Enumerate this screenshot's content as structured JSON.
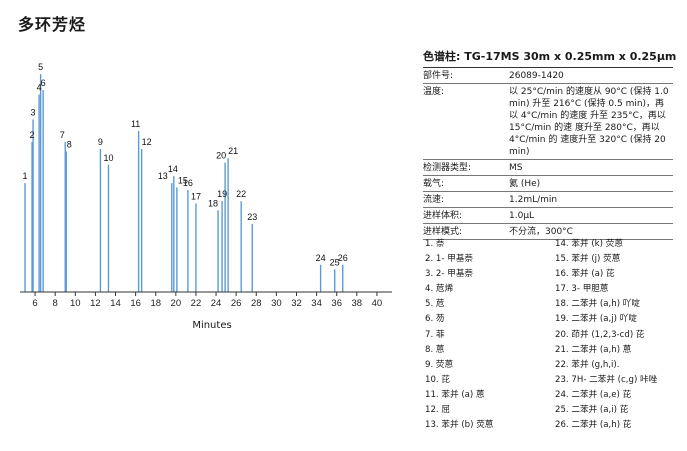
{
  "page_title": "多环芳烃",
  "column": {
    "label": "色谱柱:",
    "value": "TG-17MS 30m x 0.25mm x 0.25μm"
  },
  "params": [
    {
      "key": "部件号:",
      "value": "26089-1420"
    },
    {
      "key": "温度:",
      "value": "以 25°C/min 的速度从 90°C (保持 1.0 min) 升至 216°C (保持 0.5 min)，再以 4°C/min 的速度 升至 235°C，再以 15°C/min 的速 度升至 280°C，再以 4°C/min 的 速度升至 320°C (保持 20 min)"
    },
    {
      "key": "检测器类型:",
      "value": "MS"
    },
    {
      "key": "载气:",
      "value": "氦 (He)"
    },
    {
      "key": "流速:",
      "value": "1.2mL/min"
    },
    {
      "key": "进样体积:",
      "value": "1.0μL"
    },
    {
      "key": "进样模式:",
      "value": "不分流，300°C"
    }
  ],
  "compounds": [
    "1. 萘",
    "2. 1- 甲基萘",
    "3. 2- 甲基萘",
    "4. 苊烯",
    "5. 苊",
    "6. 芴",
    "7. 菲",
    "8. 蒽",
    "9. 荧蒽",
    "10. 芘",
    "11. 苯并 (a) 蒽",
    "12. 屈",
    "13. 苯并 (b) 荧蒽",
    "14. 苯并 (k) 荧蒽",
    "15. 苯并 (j) 荧蒽",
    "16. 苯并 (a) 芘",
    "17. 3- 甲胆蒽",
    "18. 二苯并 (a,h) 吖啶",
    "19. 二苯并 (a,j) 吖啶",
    "20. 茚并 (1,2,3-cd) 芘",
    "21. 二苯并 (a,h) 蒽",
    "22. 苯并 (g,h,i).",
    "23. 7H- 二苯并 (c,g) 咔唑",
    "24. 二苯并 (a,e) 芘",
    "25. 二苯并 (a,i) 芘",
    "26. 二苯并 (a,h) 芘"
  ],
  "chart_data": {
    "type": "line",
    "title": "",
    "xlabel": "Minutes",
    "ylabel": "",
    "xlim": [
      4.5,
      41.5
    ],
    "ylim": [
      0,
      100
    ],
    "xticks": [
      6,
      8,
      10,
      12,
      14,
      16,
      18,
      20,
      22,
      24,
      26,
      28,
      30,
      32,
      34,
      36,
      38,
      40
    ],
    "grid": false,
    "line_color": "#5b9bd5",
    "peaks": [
      {
        "label": "1",
        "rt": 5.0,
        "height": 48
      },
      {
        "label": "2",
        "rt": 5.7,
        "height": 66
      },
      {
        "label": "3",
        "rt": 5.8,
        "height": 76
      },
      {
        "label": "4",
        "rt": 6.4,
        "height": 87
      },
      {
        "label": "5",
        "rt": 6.55,
        "height": 96
      },
      {
        "label": "6",
        "rt": 6.8,
        "height": 89
      },
      {
        "label": "7",
        "rt": 9.0,
        "height": 66
      },
      {
        "label": "8",
        "rt": 9.1,
        "height": 62
      },
      {
        "label": "9",
        "rt": 12.5,
        "height": 63
      },
      {
        "label": "10",
        "rt": 13.3,
        "height": 56
      },
      {
        "label": "11",
        "rt": 16.3,
        "height": 71
      },
      {
        "label": "12",
        "rt": 16.6,
        "height": 63
      },
      {
        "label": "13",
        "rt": 19.6,
        "height": 48
      },
      {
        "label": "14",
        "rt": 19.8,
        "height": 51
      },
      {
        "label": "15",
        "rt": 20.1,
        "height": 46
      },
      {
        "label": "16",
        "rt": 21.2,
        "height": 45
      },
      {
        "label": "17",
        "rt": 22.0,
        "height": 39
      },
      {
        "label": "18",
        "rt": 24.2,
        "height": 36
      },
      {
        "label": "19",
        "rt": 24.6,
        "height": 40
      },
      {
        "label": "20",
        "rt": 24.9,
        "height": 57
      },
      {
        "label": "21",
        "rt": 25.2,
        "height": 59
      },
      {
        "label": "22",
        "rt": 26.5,
        "height": 40
      },
      {
        "label": "23",
        "rt": 27.6,
        "height": 30
      },
      {
        "label": "24",
        "rt": 34.4,
        "height": 12
      },
      {
        "label": "25",
        "rt": 35.8,
        "height": 10
      },
      {
        "label": "26",
        "rt": 36.6,
        "height": 12
      }
    ]
  }
}
